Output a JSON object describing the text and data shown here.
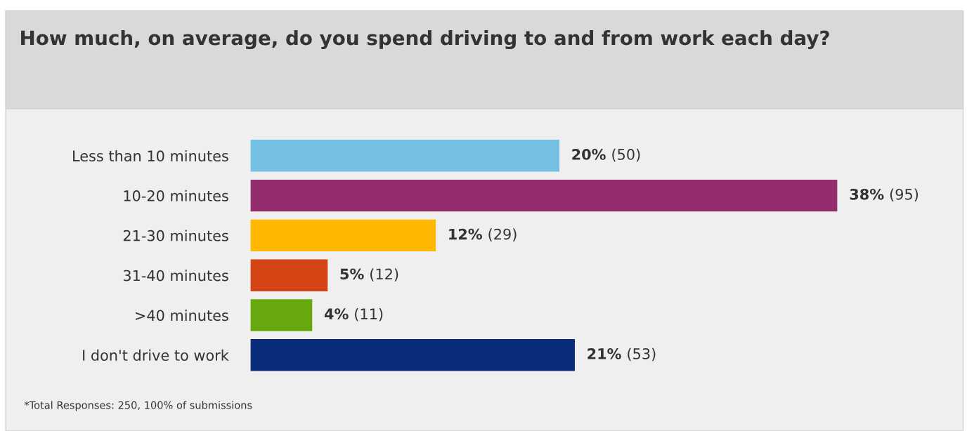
{
  "chart_data": {
    "type": "bar",
    "orientation": "horizontal",
    "title": "How much, on average, do you spend driving to and from work each day?",
    "categories": [
      "Less than 10 minutes",
      "10-20 minutes",
      "21-30 minutes",
      "31-40 minutes",
      ">40 minutes",
      "I don't drive to work"
    ],
    "values": [
      20,
      38,
      12,
      5,
      4,
      21
    ],
    "colors": [
      "#74c0e2",
      "#942d6e",
      "#ffb800",
      "#d44414",
      "#66a80d",
      "#0a2c7a"
    ],
    "value_labels": [
      "20% (50)",
      "38% (95)",
      "12% (29)",
      "5% (12)",
      "4% (11)",
      "21% (53)"
    ],
    "tick_labels": "y",
    "grid": false,
    "legend": false,
    "annotations": [
      "*Total Responses: 250, 100% of submissions"
    ]
  }
}
